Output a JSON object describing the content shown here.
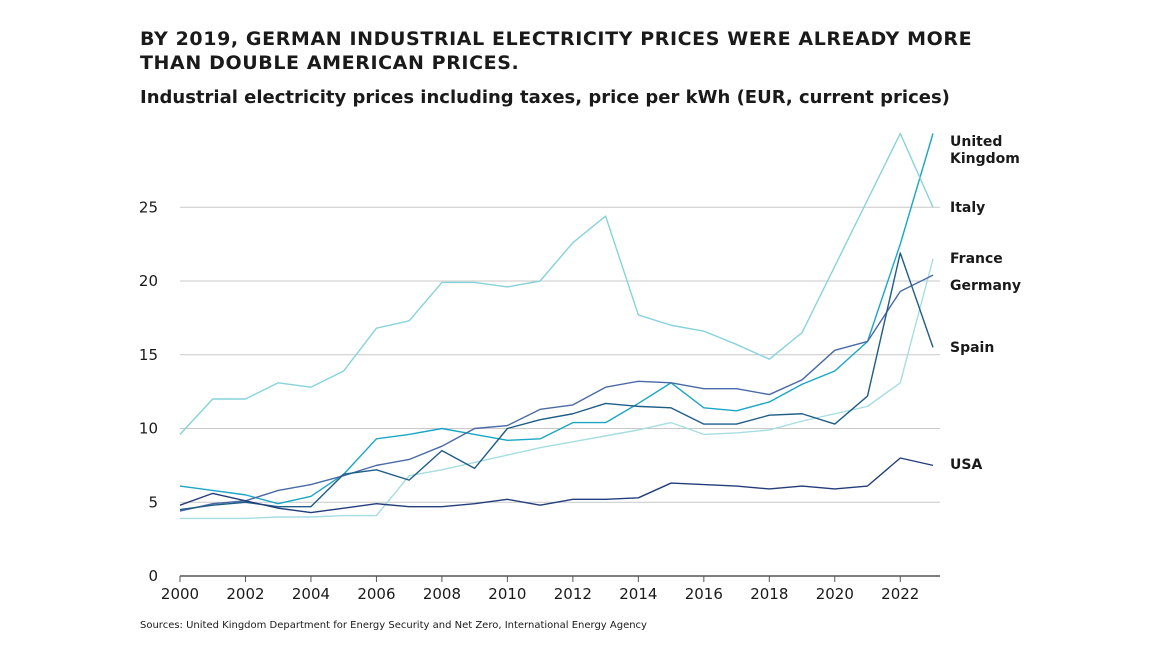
{
  "header": {
    "title": "BY 2019, GERMAN INDUSTRIAL ELECTRICITY PRICES WERE ALREADY MORE THAN DOUBLE AMERICAN PRICES.",
    "subtitle": "Industrial electricity prices including taxes, price per kWh (EUR, current prices)"
  },
  "footer": {
    "source": "Sources: United Kingdom Department for Energy Security and Net Zero, International Energy Agency"
  },
  "chart_data": {
    "type": "line",
    "title": "BY 2019, GERMAN INDUSTRIAL ELECTRICITY PRICES WERE ALREADY MORE THAN DOUBLE AMERICAN PRICES.",
    "subtitle": "Industrial electricity prices including taxes, price per kWh (EUR, current prices)",
    "xlabel": "",
    "ylabel": "",
    "x": [
      2000,
      2001,
      2002,
      2003,
      2004,
      2005,
      2006,
      2007,
      2008,
      2009,
      2010,
      2011,
      2012,
      2013,
      2014,
      2015,
      2016,
      2017,
      2018,
      2019,
      2020,
      2021,
      2022,
      2023
    ],
    "x_ticks": [
      2000,
      2002,
      2004,
      2006,
      2008,
      2010,
      2012,
      2014,
      2016,
      2018,
      2020,
      2022
    ],
    "y_ticks": [
      0,
      5,
      10,
      15,
      20,
      25
    ],
    "xlim": [
      2000,
      2023.3
    ],
    "ylim": [
      0,
      30
    ],
    "grid": "horizontal",
    "legend": "labels at line ends, right",
    "series": [
      {
        "name": "United\nKingdom",
        "color": "#1aa6c4",
        "values": [
          6.1,
          5.8,
          5.5,
          4.9,
          5.4,
          6.9,
          9.3,
          9.6,
          10.0,
          9.6,
          9.2,
          9.3,
          10.4,
          10.4,
          11.7,
          13.1,
          11.4,
          11.2,
          11.8,
          13.0,
          13.9,
          15.9,
          22.5,
          30.0
        ]
      },
      {
        "name": "Italy",
        "color": "#86d3da",
        "values": [
          9.6,
          12.0,
          12.0,
          13.1,
          12.8,
          13.9,
          16.8,
          17.3,
          19.9,
          19.9,
          19.6,
          20.0,
          22.6,
          24.4,
          17.7,
          17.0,
          16.6,
          15.7,
          14.7,
          16.5,
          21.0,
          25.5,
          30.0,
          25.0
        ]
      },
      {
        "name": "France",
        "color": "#a6dde2",
        "values": [
          3.9,
          3.9,
          3.9,
          4.0,
          4.0,
          4.1,
          4.1,
          6.8,
          7.2,
          7.7,
          8.2,
          8.7,
          9.1,
          9.5,
          9.9,
          10.4,
          9.6,
          9.7,
          9.9,
          10.5,
          11.0,
          11.5,
          13.1,
          21.5
        ]
      },
      {
        "name": "Germany",
        "color": "#4a6aa6",
        "values": [
          4.4,
          4.9,
          5.1,
          5.8,
          6.2,
          6.8,
          7.5,
          7.9,
          8.8,
          10.0,
          10.2,
          11.3,
          11.6,
          12.8,
          13.2,
          13.1,
          12.7,
          12.7,
          12.3,
          13.3,
          15.3,
          15.9,
          19.3,
          20.4
        ]
      },
      {
        "name": "Spain",
        "color": "#1f5d86",
        "values": [
          4.5,
          4.8,
          5.0,
          4.7,
          4.7,
          6.9,
          7.2,
          6.5,
          8.5,
          7.3,
          10.0,
          10.6,
          11.0,
          11.7,
          11.5,
          11.4,
          10.3,
          10.3,
          10.9,
          11.0,
          10.3,
          12.2,
          21.9,
          15.5
        ]
      },
      {
        "name": "USA",
        "color": "#233d7a",
        "values": [
          4.8,
          5.6,
          5.1,
          4.6,
          4.3,
          4.6,
          4.9,
          4.7,
          4.7,
          4.9,
          5.2,
          4.8,
          5.2,
          5.2,
          5.3,
          6.3,
          6.2,
          6.1,
          5.9,
          6.1,
          5.9,
          6.1,
          8.0,
          7.5
        ]
      }
    ]
  }
}
